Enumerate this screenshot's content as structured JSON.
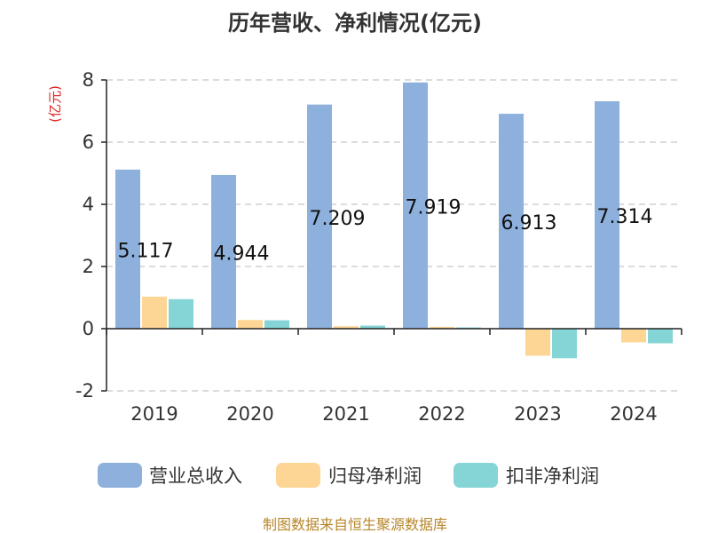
{
  "title": "历年营收、净利情况(亿元)",
  "source": "制图数据来自恒生聚源数据库",
  "chart_data": {
    "type": "bar",
    "title": "历年营收、净利情况(亿元)",
    "ylabel": "(亿元)",
    "xlabel": "",
    "categories": [
      "2019",
      "2020",
      "2021",
      "2022",
      "2023",
      "2024"
    ],
    "ylim": [
      -2,
      8
    ],
    "yticks": [
      -2,
      0,
      2,
      4,
      6,
      8
    ],
    "grid": true,
    "legend_position": "bottom",
    "series": [
      {
        "name": "营业总收入",
        "color": "#8eb0dc",
        "values": [
          5.117,
          4.944,
          7.209,
          7.919,
          6.913,
          7.314
        ],
        "data_labels": [
          "5.117",
          "4.944",
          "7.209",
          "7.919",
          "6.913",
          "7.314"
        ]
      },
      {
        "name": "归母净利润",
        "color": "#fdd695",
        "values": [
          1.03,
          0.28,
          0.08,
          0.06,
          -0.87,
          -0.44
        ]
      },
      {
        "name": "扣非净利润",
        "color": "#86d5d6",
        "values": [
          0.95,
          0.27,
          0.1,
          0.04,
          -0.95,
          -0.47
        ]
      }
    ]
  }
}
